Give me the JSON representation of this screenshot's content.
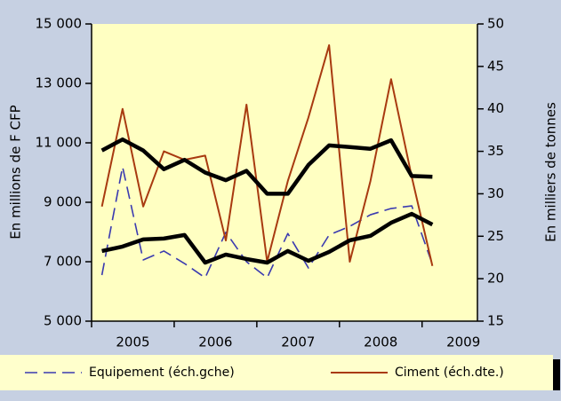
{
  "chart_data": {
    "type": "line",
    "ylabel": "En millions de F CFP",
    "y2label": "En milliers de tonnes",
    "x": [
      2005.125,
      2005.375,
      2005.625,
      2005.875,
      2006.125,
      2006.375,
      2006.625,
      2006.875,
      2007.125,
      2007.375,
      2007.625,
      2007.875,
      2008.125,
      2008.375,
      2008.625,
      2008.875,
      2009.125
    ],
    "xlim": [
      2005,
      2009.67
    ],
    "xticks": [
      {
        "value": 2005,
        "label": "2005"
      },
      {
        "value": 2006,
        "label": "2006"
      },
      {
        "value": 2007,
        "label": "2007"
      },
      {
        "value": 2008,
        "label": "2008"
      },
      {
        "value": 2009,
        "label": "2009"
      }
    ],
    "ylim": [
      5000,
      15000
    ],
    "yticks": [
      {
        "value": 5000,
        "label": "5 000"
      },
      {
        "value": 7000,
        "label": "7 000"
      },
      {
        "value": 9000,
        "label": "9 000"
      },
      {
        "value": 11000,
        "label": "11 000"
      },
      {
        "value": 13000,
        "label": "13 000"
      },
      {
        "value": 15000,
        "label": "15 000"
      }
    ],
    "y2lim": [
      15,
      50
    ],
    "y2ticks": [
      15,
      20,
      25,
      30,
      35,
      40,
      45,
      50
    ],
    "series": [
      {
        "name": "Equipement (éch.gche)",
        "color": "#3a3ab0",
        "dash": true,
        "width": 1.6,
        "axis": "y",
        "values": [
          6550,
          10190,
          7060,
          7360,
          6940,
          6460,
          7990,
          7000,
          6460,
          7950,
          6790,
          7900,
          8190,
          8580,
          8790,
          8880,
          6910
        ]
      },
      {
        "name": "Ciment (éch.dte.)",
        "color": "#a83a10",
        "dash": false,
        "width": 2,
        "axis": "y2",
        "values": [
          28.5,
          40,
          28.5,
          35,
          34,
          34.5,
          24.5,
          40.5,
          22,
          31.5,
          39,
          47.5,
          22,
          31.5,
          43.5,
          32,
          21.5
        ]
      },
      {
        "color": "#000000",
        "dash": false,
        "width": 4.5,
        "axis": "y2",
        "values": [
          35.1,
          36.4,
          35.1,
          32.9,
          34.0,
          32.5,
          31.6,
          32.7,
          30.0,
          30.0,
          33.4,
          35.7,
          35.5,
          35.3,
          36.3,
          32.1,
          32.0
        ]
      },
      {
        "color": "#000000",
        "dash": false,
        "width": 4.5,
        "axis": "y",
        "values": [
          7360,
          7510,
          7750,
          7780,
          7900,
          6970,
          7240,
          7090,
          6970,
          7360,
          7030,
          7330,
          7720,
          7870,
          8310,
          8610,
          8250
        ]
      }
    ]
  }
}
